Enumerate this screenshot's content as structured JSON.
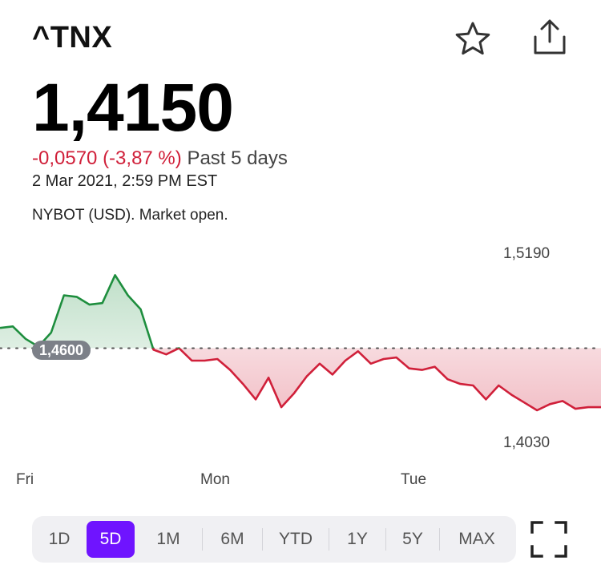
{
  "header": {
    "ticker": "^TNX",
    "icons": {
      "favorite": "star-icon",
      "share": "share-icon"
    }
  },
  "quote": {
    "price": "1,4150",
    "change": "-0,0570 (-3,87 %)",
    "period": "Past 5 days",
    "timestamp": "2 Mar 2021, 2:59 PM EST",
    "market_status": "NYBOT (USD). Market open."
  },
  "chart_data": {
    "type": "line",
    "x_labels": [
      "Fri",
      "Mon",
      "Tue"
    ],
    "y_high_label": "1,5190",
    "y_low_label": "1,4030",
    "reference_label": "1,4600",
    "reference_value": 1.46,
    "ylim": [
      1.403,
      1.519
    ],
    "colors": {
      "above": "#1e8e3e",
      "below": "#d0203a"
    },
    "series": [
      {
        "values": [
          1.473,
          1.474,
          1.466,
          1.461,
          1.47,
          1.494,
          1.493,
          1.488,
          1.489,
          1.507,
          1.494,
          1.485,
          1.459,
          1.456,
          1.46,
          1.452,
          1.452,
          1.453,
          1.446,
          1.437,
          1.427,
          1.441,
          1.422,
          1.431,
          1.442,
          1.45,
          1.443,
          1.452,
          1.458,
          1.45,
          1.453,
          1.454,
          1.447,
          1.446,
          1.448,
          1.44,
          1.437,
          1.436,
          1.427,
          1.436,
          1.43,
          1.425,
          1.42,
          1.424,
          1.426,
          1.421,
          1.422,
          1.422
        ]
      }
    ]
  },
  "ranges": {
    "items": [
      "1D",
      "5D",
      "1M",
      "6M",
      "YTD",
      "1Y",
      "5Y",
      "MAX"
    ],
    "active": "5D"
  },
  "fullscreen_icon": "fullscreen-icon"
}
